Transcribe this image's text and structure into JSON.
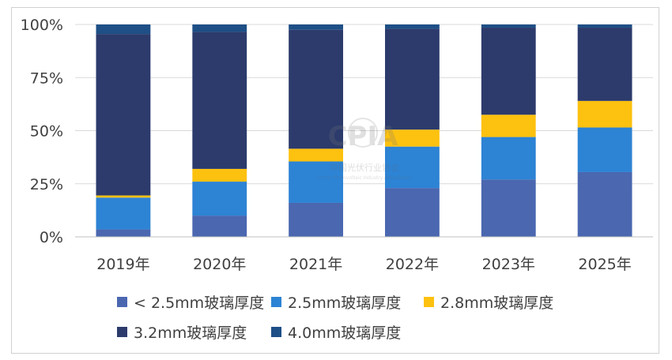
{
  "chart_data": {
    "type": "bar",
    "stacked": true,
    "percent": true,
    "categories": [
      "2019年",
      "2020年",
      "2021年",
      "2022年",
      "2023年",
      "2025年"
    ],
    "ylim": [
      0,
      100
    ],
    "yticks": [
      "0%",
      "25%",
      "50%",
      "75%",
      "100%"
    ],
    "grid": true,
    "legend_position": "bottom",
    "series": [
      {
        "name": "< 2.5mm玻璃厚度",
        "color": "#4a67b0",
        "values": [
          3.5,
          10,
          16,
          23,
          27,
          30.5
        ]
      },
      {
        "name": "2.5mm玻璃厚度",
        "color": "#2d83d4",
        "values": [
          15,
          16,
          19.5,
          19.5,
          20,
          21
        ]
      },
      {
        "name": "2.8mm玻璃厚度",
        "color": "#fdc10f",
        "values": [
          1,
          6,
          6,
          8,
          10.5,
          12.5
        ]
      },
      {
        "name": "3.2mm玻璃厚度",
        "color": "#2c3b6c",
        "values": [
          76,
          64.5,
          56,
          47.5,
          41,
          34.5
        ]
      },
      {
        "name": "4.0mm玻璃厚度",
        "color": "#1e4f86",
        "values": [
          4.5,
          3.5,
          2.5,
          2,
          1.5,
          1.5
        ]
      }
    ]
  },
  "watermark": {
    "logo_text": "CPIA",
    "name": "中国光伏行业协会",
    "english": "China Photovoltaic Industry Association"
  }
}
